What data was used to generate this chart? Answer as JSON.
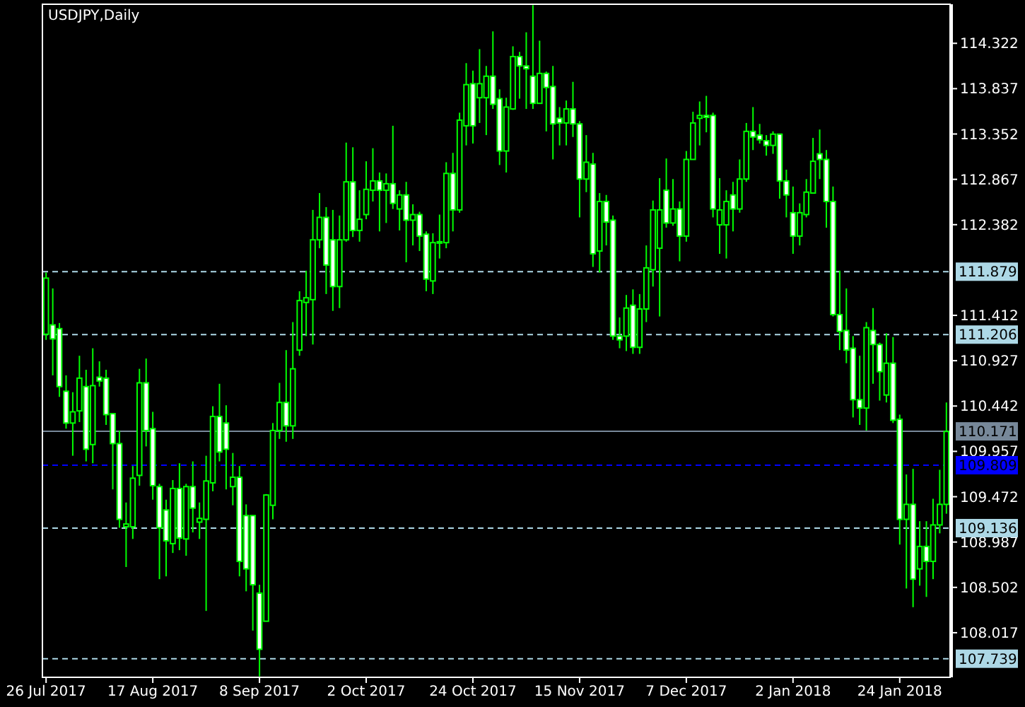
{
  "chart_data": {
    "type": "candlestick",
    "title": "USDJPY,Daily",
    "color": "#00ff00",
    "categories": [
      "26 Jul 2017",
      null,
      null,
      null,
      null,
      null,
      null,
      null,
      null,
      null,
      null,
      null,
      null,
      null,
      null,
      null,
      "17 Aug 2017",
      null,
      null,
      null,
      null,
      null,
      null,
      null,
      null,
      null,
      null,
      null,
      null,
      null,
      null,
      null,
      "8 Sep 2017",
      null,
      null,
      null,
      null,
      null,
      null,
      null,
      null,
      null,
      null,
      null,
      null,
      null,
      null,
      null,
      "2 Oct 2017",
      null,
      null,
      null,
      null,
      null,
      null,
      null,
      null,
      null,
      null,
      null,
      null,
      null,
      null,
      null,
      "24 Oct 2017",
      null,
      null,
      null,
      null,
      null,
      null,
      null,
      null,
      null,
      null,
      null,
      null,
      null,
      null,
      null,
      "15 Nov 2017",
      null,
      null,
      null,
      null,
      null,
      null,
      null,
      null,
      null,
      null,
      null,
      null,
      null,
      null,
      null,
      "7 Dec 2017",
      null,
      null,
      null,
      null,
      null,
      null,
      null,
      null,
      null,
      null,
      null,
      null,
      null,
      null,
      null,
      "2 Jan 2018",
      null,
      null,
      null,
      null,
      null,
      null,
      null,
      null,
      null,
      null,
      null,
      null,
      null,
      null,
      null,
      "24 Jan 2018",
      null,
      null,
      null,
      null,
      null,
      null,
      null
    ],
    "ohlc": [
      [
        111.21,
        111.87,
        111.15,
        111.81
      ],
      [
        111.31,
        111.7,
        110.77,
        111.16
      ],
      [
        111.27,
        111.33,
        110.54,
        110.65
      ],
      [
        110.6,
        110.77,
        110.2,
        110.26
      ],
      [
        110.26,
        110.59,
        109.91,
        110.38
      ],
      [
        110.39,
        110.98,
        110.27,
        110.74
      ],
      [
        110.65,
        110.83,
        109.85,
        109.98
      ],
      [
        110.03,
        111.06,
        109.83,
        110.66
      ],
      [
        110.75,
        110.92,
        110.65,
        110.71
      ],
      [
        110.74,
        110.83,
        110.24,
        110.35
      ],
      [
        110.36,
        110.36,
        109.55,
        110.04
      ],
      [
        110.04,
        110.18,
        109.14,
        109.23
      ],
      [
        109.15,
        109.41,
        108.72,
        109.18
      ],
      [
        109.15,
        109.8,
        109.02,
        109.67
      ],
      [
        109.7,
        110.84,
        109.59,
        110.69
      ],
      [
        110.69,
        110.95,
        110.01,
        110.18
      ],
      [
        110.2,
        110.38,
        109.44,
        109.59
      ],
      [
        109.58,
        109.61,
        108.59,
        109.14
      ],
      [
        109.33,
        109.44,
        108.62,
        109.0
      ],
      [
        108.97,
        109.65,
        108.87,
        109.56
      ],
      [
        109.56,
        109.83,
        108.9,
        109.03
      ],
      [
        109.02,
        109.61,
        108.84,
        109.58
      ],
      [
        109.58,
        109.85,
        109.09,
        109.35
      ],
      [
        109.2,
        109.41,
        109.02,
        109.24
      ],
      [
        109.23,
        109.91,
        108.25,
        109.64
      ],
      [
        109.62,
        110.44,
        109.53,
        110.33
      ],
      [
        110.33,
        110.68,
        109.85,
        109.95
      ],
      [
        110.26,
        110.45,
        109.55,
        109.98
      ],
      [
        109.58,
        109.94,
        109.38,
        109.68
      ],
      [
        109.68,
        109.8,
        108.62,
        108.78
      ],
      [
        109.27,
        109.39,
        108.46,
        108.7
      ],
      [
        109.27,
        109.27,
        108.04,
        108.53
      ],
      [
        108.44,
        108.53,
        107.55,
        107.84
      ],
      [
        108.14,
        109.5,
        108.14,
        109.49
      ],
      [
        109.38,
        110.26,
        109.23,
        110.18
      ],
      [
        110.18,
        110.69,
        110.09,
        110.48
      ],
      [
        110.48,
        111.04,
        110.06,
        110.23
      ],
      [
        110.23,
        111.34,
        110.09,
        110.84
      ],
      [
        111.04,
        111.67,
        110.98,
        111.57
      ],
      [
        111.55,
        111.89,
        111.19,
        111.6
      ],
      [
        111.58,
        112.54,
        111.1,
        112.22
      ],
      [
        112.22,
        112.72,
        112.13,
        112.46
      ],
      [
        112.46,
        112.57,
        111.64,
        111.95
      ],
      [
        112.22,
        112.54,
        111.46,
        111.72
      ],
      [
        111.72,
        112.48,
        111.49,
        112.22
      ],
      [
        112.22,
        113.26,
        112.2,
        112.84
      ],
      [
        112.84,
        113.21,
        112.25,
        112.32
      ],
      [
        112.32,
        112.75,
        112.2,
        112.44
      ],
      [
        112.49,
        113.06,
        112.44,
        112.76
      ],
      [
        112.75,
        113.2,
        112.63,
        112.85
      ],
      [
        112.85,
        112.94,
        112.31,
        112.75
      ],
      [
        112.75,
        112.93,
        112.4,
        112.82
      ],
      [
        112.82,
        113.44,
        112.55,
        112.61
      ],
      [
        112.55,
        112.75,
        112.32,
        112.7
      ],
      [
        112.7,
        112.84,
        111.98,
        112.43
      ],
      [
        112.43,
        112.6,
        112.16,
        112.49
      ],
      [
        112.49,
        112.52,
        112.1,
        112.26
      ],
      [
        112.28,
        112.31,
        111.67,
        111.8
      ],
      [
        111.78,
        112.29,
        111.64,
        112.19
      ],
      [
        112.19,
        112.49,
        112.02,
        112.2
      ],
      [
        112.19,
        113.05,
        112.13,
        112.93
      ],
      [
        112.93,
        113.15,
        112.31,
        112.54
      ],
      [
        112.54,
        113.58,
        112.51,
        113.5
      ],
      [
        113.44,
        114.11,
        113.23,
        113.88
      ],
      [
        113.89,
        114.03,
        113.25,
        113.44
      ],
      [
        113.74,
        114.26,
        113.47,
        113.89
      ],
      [
        113.74,
        114.08,
        113.34,
        113.97
      ],
      [
        113.97,
        114.45,
        113.62,
        113.67
      ],
      [
        113.73,
        113.83,
        113.02,
        113.17
      ],
      [
        113.17,
        113.74,
        112.94,
        113.64
      ],
      [
        113.62,
        114.29,
        113.61,
        114.18
      ],
      [
        114.18,
        114.23,
        113.73,
        114.08
      ],
      [
        114.08,
        114.44,
        113.62,
        114.05
      ],
      [
        113.97,
        114.73,
        113.62,
        113.68
      ],
      [
        113.68,
        114.35,
        113.68,
        114.0
      ],
      [
        114.0,
        114.02,
        113.38,
        113.85
      ],
      [
        113.86,
        114.08,
        113.08,
        113.46
      ],
      [
        113.52,
        113.64,
        113.23,
        113.47
      ],
      [
        113.47,
        113.71,
        113.23,
        113.62
      ],
      [
        113.62,
        113.91,
        113.32,
        113.46
      ],
      [
        113.46,
        113.49,
        112.46,
        112.87
      ],
      [
        112.87,
        113.34,
        112.73,
        113.05
      ],
      [
        113.03,
        113.15,
        111.93,
        112.07
      ],
      [
        112.1,
        112.72,
        111.87,
        112.63
      ],
      [
        112.63,
        112.7,
        112.16,
        112.41
      ],
      [
        112.43,
        112.48,
        111.15,
        111.19
      ],
      [
        111.19,
        111.39,
        111.06,
        111.15
      ],
      [
        111.19,
        111.63,
        111.03,
        111.49
      ],
      [
        111.52,
        111.69,
        111.0,
        111.07
      ],
      [
        111.07,
        111.64,
        111.0,
        111.48
      ],
      [
        111.48,
        112.16,
        111.34,
        111.92
      ],
      [
        111.9,
        112.64,
        111.72,
        112.54
      ],
      [
        112.13,
        112.88,
        111.4,
        112.54
      ],
      [
        112.75,
        113.09,
        112.35,
        112.4
      ],
      [
        112.4,
        112.87,
        112.37,
        112.55
      ],
      [
        112.55,
        112.63,
        111.99,
        112.26
      ],
      [
        112.26,
        113.17,
        112.2,
        113.08
      ],
      [
        113.08,
        113.59,
        113.08,
        113.47
      ],
      [
        113.52,
        113.7,
        113.23,
        113.55
      ],
      [
        113.55,
        113.76,
        113.37,
        113.53
      ],
      [
        113.55,
        113.58,
        112.46,
        112.55
      ],
      [
        112.38,
        112.88,
        112.07,
        112.54
      ],
      [
        112.38,
        112.75,
        112.02,
        112.63
      ],
      [
        112.7,
        112.84,
        112.31,
        112.55
      ],
      [
        112.55,
        113.08,
        112.51,
        112.87
      ],
      [
        112.87,
        113.47,
        112.84,
        113.38
      ],
      [
        113.38,
        113.64,
        113.18,
        113.32
      ],
      [
        113.34,
        113.46,
        113.25,
        113.29
      ],
      [
        113.28,
        113.34,
        113.12,
        113.23
      ],
      [
        113.23,
        113.38,
        113.14,
        113.35
      ],
      [
        113.35,
        113.35,
        112.66,
        112.85
      ],
      [
        112.85,
        112.97,
        112.46,
        112.7
      ],
      [
        112.51,
        112.79,
        112.07,
        112.26
      ],
      [
        112.26,
        112.61,
        112.16,
        112.51
      ],
      [
        112.49,
        112.87,
        112.46,
        112.73
      ],
      [
        112.72,
        113.31,
        112.72,
        113.06
      ],
      [
        113.14,
        113.4,
        112.87,
        113.08
      ],
      [
        113.08,
        113.18,
        112.35,
        112.63
      ],
      [
        112.63,
        112.79,
        111.4,
        111.42
      ],
      [
        111.42,
        111.89,
        111.04,
        111.24
      ],
      [
        111.25,
        111.7,
        110.9,
        111.04
      ],
      [
        111.06,
        111.19,
        110.32,
        110.51
      ],
      [
        110.51,
        110.98,
        110.24,
        110.42
      ],
      [
        110.42,
        111.34,
        110.18,
        111.28
      ],
      [
        111.25,
        111.49,
        110.68,
        111.1
      ],
      [
        111.1,
        111.12,
        110.5,
        110.81
      ],
      [
        110.56,
        111.22,
        110.48,
        110.9
      ],
      [
        110.9,
        111.18,
        110.26,
        110.29
      ],
      [
        110.3,
        110.35,
        108.96,
        109.23
      ],
      [
        109.23,
        109.71,
        108.49,
        109.39
      ],
      [
        109.39,
        109.77,
        108.29,
        108.59
      ],
      [
        108.7,
        109.21,
        108.52,
        108.94
      ],
      [
        108.94,
        109.21,
        108.4,
        108.78
      ],
      [
        108.78,
        109.45,
        108.59,
        109.17
      ],
      [
        109.17,
        109.76,
        109.08,
        109.39
      ],
      [
        109.39,
        110.48,
        109.29,
        110.17
      ]
    ],
    "ylim": [
      107.54,
      114.74
    ],
    "yticks": [
      114.322,
      113.837,
      113.352,
      112.867,
      112.382,
      111.412,
      110.927,
      110.442,
      109.957,
      109.472,
      108.987,
      108.502,
      108.017
    ],
    "ref_lines": [
      {
        "axis": "y",
        "value": 111.879,
        "label": "111.879",
        "color": "#add8e6",
        "line_style": "dashed"
      },
      {
        "axis": "y",
        "value": 111.206,
        "label": "111.206",
        "color": "#add8e6",
        "line_style": "dashed"
      },
      {
        "axis": "y",
        "value": 110.171,
        "label": "110.171",
        "color": "#778899",
        "line_style": "solid"
      },
      {
        "axis": "y",
        "value": 109.809,
        "label": "109.809",
        "color": "#0000ff",
        "line_style": "dashed"
      },
      {
        "axis": "y",
        "value": 109.136,
        "label": "109.136",
        "color": "#add8e6",
        "line_style": "dashed"
      },
      {
        "axis": "y",
        "value": 107.739,
        "label": "107.739",
        "color": "#add8e6",
        "line_style": "dashed"
      }
    ]
  }
}
